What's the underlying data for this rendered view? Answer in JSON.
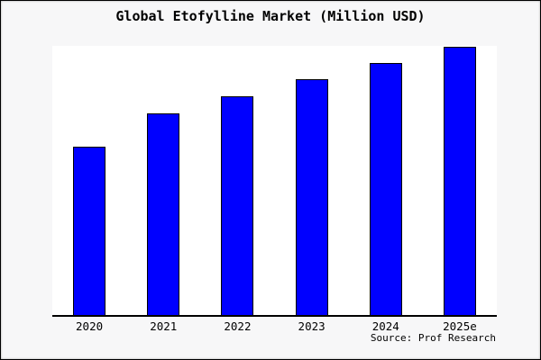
{
  "page": {
    "background_color": "#f7f7f8",
    "plot_background_color": "#ffffff",
    "frame_border_color": "#000000"
  },
  "chart_data": {
    "type": "bar",
    "title": "Global Etofylline Market (Million USD)",
    "categories": [
      "2020",
      "2021",
      "2022",
      "2023",
      "2024",
      "2025e"
    ],
    "values": [
      62.8,
      75.2,
      81.5,
      87.9,
      94.0,
      100
    ],
    "value_scale_note": "y-axis has no tick labels; values are relative bar heights with tallest bar (2025e) = 100",
    "ylim": [
      0,
      100
    ],
    "xlabel": "",
    "ylabel": "",
    "grid": false,
    "legend": false,
    "bar_color": "#0000ff",
    "bar_edge_color": "#000000",
    "axis_line_color": "#000000",
    "source_label": "Source: Prof Research"
  }
}
